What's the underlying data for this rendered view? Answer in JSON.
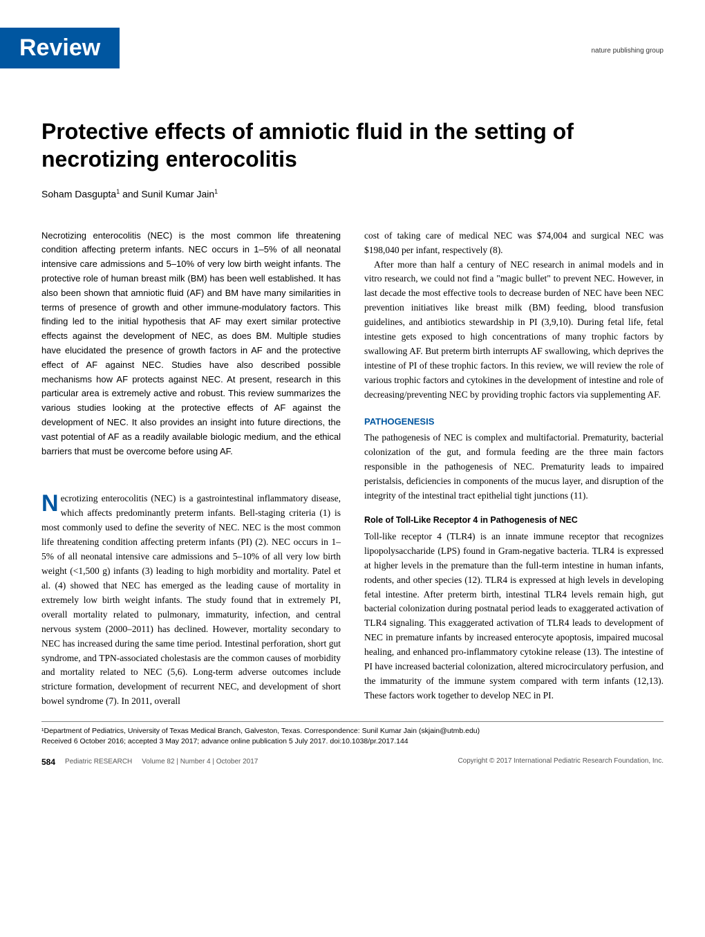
{
  "header": {
    "tab_label": "Review",
    "publisher": "nature publishing group"
  },
  "title": "Protective effects of amniotic fluid in the setting of necrotizing enterocolitis",
  "authors_html": "Soham Dasgupta<sup>1</sup> and Sunil Kumar Jain<sup>1</sup>",
  "abstract": "Necrotizing enterocolitis (NEC) is the most common life threatening condition affecting preterm infants. NEC occurs in 1–5% of all neonatal intensive care admissions and 5–10% of very low birth weight infants. The protective role of human breast milk (BM) has been well established. It has also been shown that amniotic fluid (AF) and BM have many similarities in terms of presence of growth and other immune-modulatory factors. This finding led to the initial hypothesis that AF may exert similar protective effects against the development of NEC, as does BM. Multiple studies have elucidated the presence of growth factors in AF and the protective effect of AF against NEC. Studies have also described possible mechanisms how AF protects against NEC. At present, research in this particular area is extremely active and robust. This review summarizes the various studies looking at the protective effects of AF against the development of NEC. It also provides an insight into future directions, the vast potential of AF as a readily available biologic medium, and the ethical barriers that must be overcome before using AF.",
  "left_body": "ecrotizing enterocolitis (NEC) is a gastrointestinal inflammatory disease, which affects predominantly preterm infants. Bell-staging criteria (1) is most commonly used to define the severity of NEC. NEC is the most common life threatening condition affecting preterm infants (PI) (2). NEC occurs in 1–5% of all neonatal intensive care admissions and 5–10% of all very low birth weight (<1,500 g) infants (3) leading to high morbidity and mortality. Patel et al. (4) showed that NEC has emerged as the leading cause of mortality in extremely low birth weight infants. The study found that in extremely PI, overall mortality related to pulmonary, immaturity, infection, and central nervous system (2000–2011) has declined. However, mortality secondary to NEC has increased during the same time period. Intestinal perforation, short gut syndrome, and TPN-associated cholestasis are the common causes of morbidity and mortality related to NEC (5,6). Long-term adverse outcomes include stricture formation, development of recurrent NEC, and development of short bowel syndrome (7). In 2011, overall",
  "right_p1": "cost of taking care of medical NEC was $74,004 and surgical NEC was $198,040 per infant, respectively (8).",
  "right_p2": "After more than half a century of NEC research in animal models and in vitro research, we could not find a \"magic bullet\" to prevent NEC. However, in last decade the most effective tools to decrease burden of NEC have been NEC prevention initiatives like breast milk (BM) feeding, blood transfusion guidelines, and antibiotics stewardship in PI (3,9,10). During fetal life, fetal intestine gets exposed to high concentrations of many trophic factors by swallowing AF. But preterm birth interrupts AF swallowing, which deprives the intestine of PI of these trophic factors. In this review, we will review the role of various trophic factors and cytokines in the development of intestine and role of decreasing/preventing NEC by providing trophic factors via supplementing AF.",
  "pathogenesis_head": "PATHOGENESIS",
  "pathogenesis_body": "The pathogenesis of NEC is complex and multifactorial. Prematurity, bacterial colonization of the gut, and formula feeding are the three main factors responsible in the pathogenesis of NEC. Prematurity leads to impaired peristalsis, deficiencies in components of the mucus layer, and disruption of the integrity of the intestinal tract epithelial tight junctions (11).",
  "tlr4_head": "Role of Toll-Like Receptor 4 in Pathogenesis of NEC",
  "tlr4_body": "Toll-like receptor 4 (TLR4) is an innate immune receptor that recognizes lipopolysaccharide (LPS) found in Gram-negative bacteria. TLR4 is expressed at higher levels in the premature than the full-term intestine in human infants, rodents, and other species (12). TLR4 is expressed at high levels in developing fetal intestine. After preterm birth, intestinal TLR4 levels remain high, gut bacterial colonization during postnatal period leads to exaggerated activation of TLR4 signaling. This exaggerated activation of TLR4 leads to development of NEC in premature infants by increased enterocyte apoptosis, impaired mucosal healing, and enhanced pro-inflammatory cytokine release (13). The intestine of PI have increased bacterial colonization, altered microcirculatory perfusion, and the immaturity of the immune system compared with term infants (12,13). These factors work together to develop NEC in PI.",
  "footnote_affil": "¹Department of Pediatrics, University of Texas Medical Branch, Galveston, Texas. Correspondence: Sunil Kumar Jain (skjain@utmb.edu)",
  "footnote_dates": "Received 6 October 2016; accepted 3 May 2017; advance online publication 5 July 2017. doi:10.1038/pr.2017.144",
  "footer": {
    "page_number": "584",
    "journal": "Pediatric RESEARCH",
    "issue": "Volume 82 | Number 4 | October 2017",
    "copyright": "Copyright © 2017 International Pediatric Research Foundation, Inc."
  },
  "colors": {
    "brand_blue": "#0056a0",
    "text": "#000000",
    "footer_grey": "#555555",
    "rule_grey": "#808080"
  }
}
